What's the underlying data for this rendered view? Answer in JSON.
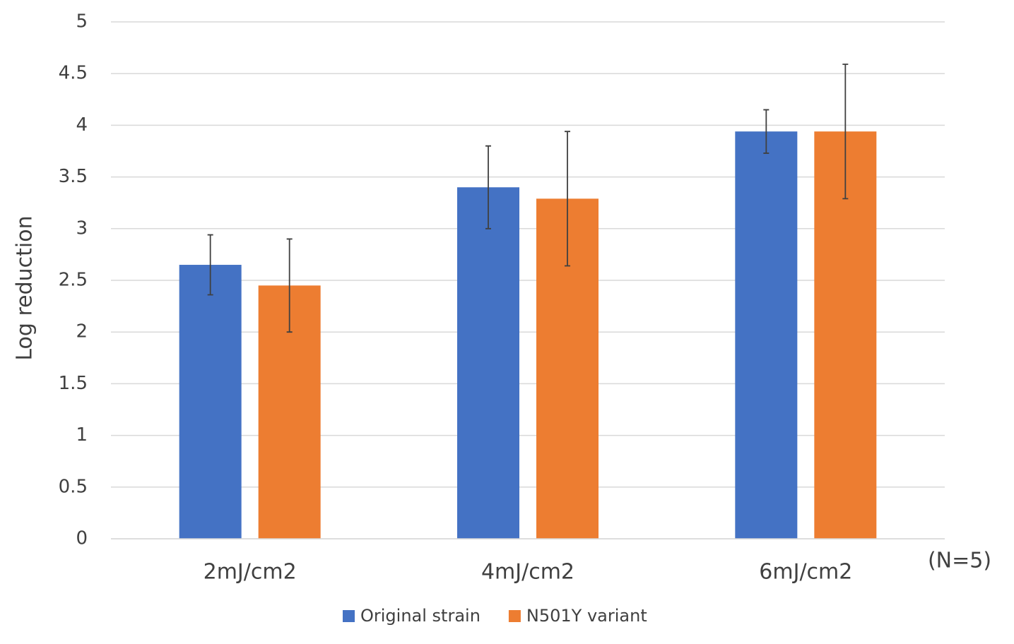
{
  "chart_data": {
    "type": "bar",
    "y_label": "Log reduction",
    "annotation": "(N=5)",
    "categories": [
      "2mJ/cm2",
      "4mJ/cm2",
      "6mJ/cm2"
    ],
    "series": [
      {
        "name": "Original strain",
        "color": "#4472c4",
        "values": [
          2.65,
          3.4,
          3.94
        ],
        "errors": [
          0.29,
          0.4,
          0.21
        ]
      },
      {
        "name": "N501Y variant",
        "color": "#ed7d31",
        "values": [
          2.45,
          3.29,
          3.94
        ],
        "errors": [
          0.45,
          0.65,
          0.65
        ]
      }
    ],
    "ylim": [
      0,
      5
    ],
    "yticks": [
      0,
      0.5,
      1,
      1.5,
      2,
      2.5,
      3,
      3.5,
      4,
      4.5,
      5
    ],
    "grid": true,
    "legend": "bottom"
  }
}
